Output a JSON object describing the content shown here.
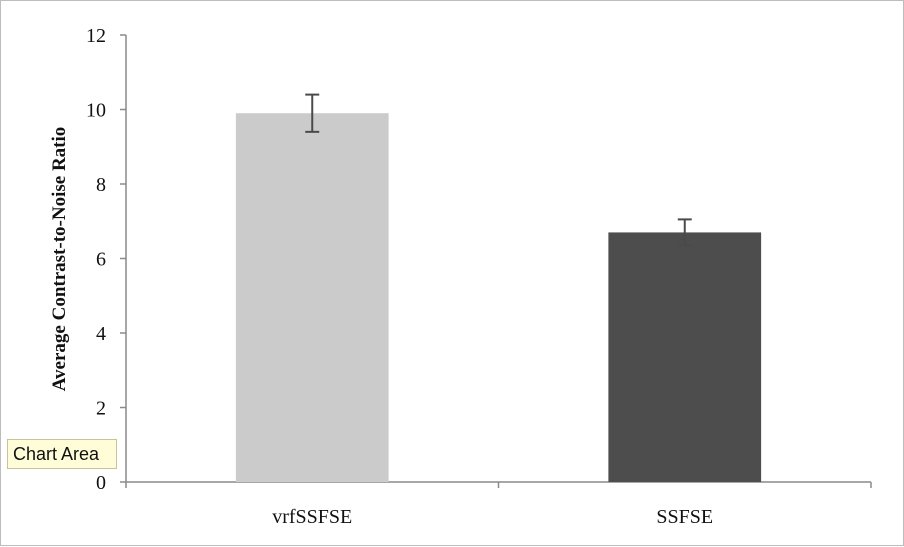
{
  "tooltip": {
    "label": "Chart Area"
  },
  "chart_data": {
    "type": "bar",
    "categories": [
      "vrfSSFSE",
      "SSFSE"
    ],
    "values": [
      9.9,
      6.7
    ],
    "error_bars": [
      0.5,
      0.35
    ],
    "bar_colors": [
      "#cbcbcb",
      "#4d4d4d"
    ],
    "title": "",
    "xlabel": "",
    "ylabel": "Average Contrast-to-Noise Ratio",
    "ylim": [
      0,
      12
    ],
    "yticks": [
      "0",
      "2",
      "4",
      "6",
      "8",
      "10",
      "12"
    ],
    "grid": false,
    "legend": "none"
  }
}
